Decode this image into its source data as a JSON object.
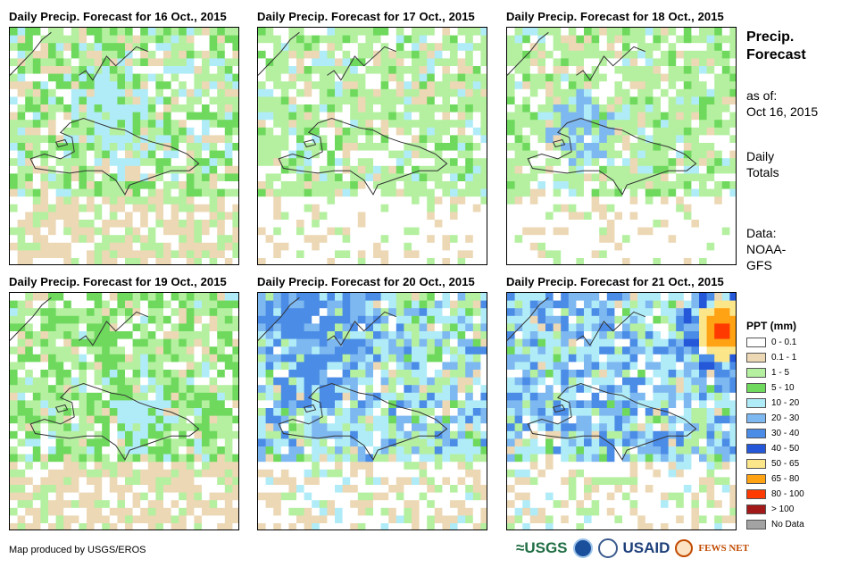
{
  "panels": [
    {
      "title": "Daily Precip. Forecast for 16 Oct., 2015"
    },
    {
      "title": "Daily Precip. Forecast for 17 Oct., 2015"
    },
    {
      "title": "Daily Precip. Forecast for 18 Oct., 2015"
    },
    {
      "title": "Daily Precip. Forecast for 19 Oct., 2015"
    },
    {
      "title": "Daily Precip. Forecast for 20 Oct., 2015"
    },
    {
      "title": "Daily Precip. Forecast for 21 Oct., 2015"
    }
  ],
  "sidebar": {
    "title_line1": "Precip.",
    "title_line2": "Forecast",
    "asof_label": "as of:",
    "asof_date": "Oct 16, 2015",
    "daily_line1": "Daily",
    "daily_line2": "Totals",
    "data_label": "Data:",
    "data_line1": "NOAA-",
    "data_line2": "GFS"
  },
  "legend": {
    "title": "PPT (mm)",
    "items": [
      {
        "label": "0 - 0.1",
        "color": "#ffffff"
      },
      {
        "label": "0.1 - 1",
        "color": "#ecd8b5"
      },
      {
        "label": "1 - 5",
        "color": "#b4f0a0"
      },
      {
        "label": "5 - 10",
        "color": "#6fd95e"
      },
      {
        "label": "10 - 20",
        "color": "#b0ecf8"
      },
      {
        "label": "20 - 30",
        "color": "#7eb8f0"
      },
      {
        "label": "30 - 40",
        "color": "#4b8ce6"
      },
      {
        "label": "40 - 50",
        "color": "#2458d8"
      },
      {
        "label": "50 - 65",
        "color": "#fce68a"
      },
      {
        "label": "65 - 80",
        "color": "#ffa214"
      },
      {
        "label": "80 - 100",
        "color": "#ff3a00"
      },
      {
        "label": "> 100",
        "color": "#a31818"
      },
      {
        "label": "No Data",
        "color": "#a3a3a3"
      }
    ]
  },
  "footer": {
    "credit": "Map produced by USGS/EROS",
    "logo_usgs": "≈USGS",
    "logo_usaid": "USAID",
    "logo_fews": "FEWS NET"
  }
}
